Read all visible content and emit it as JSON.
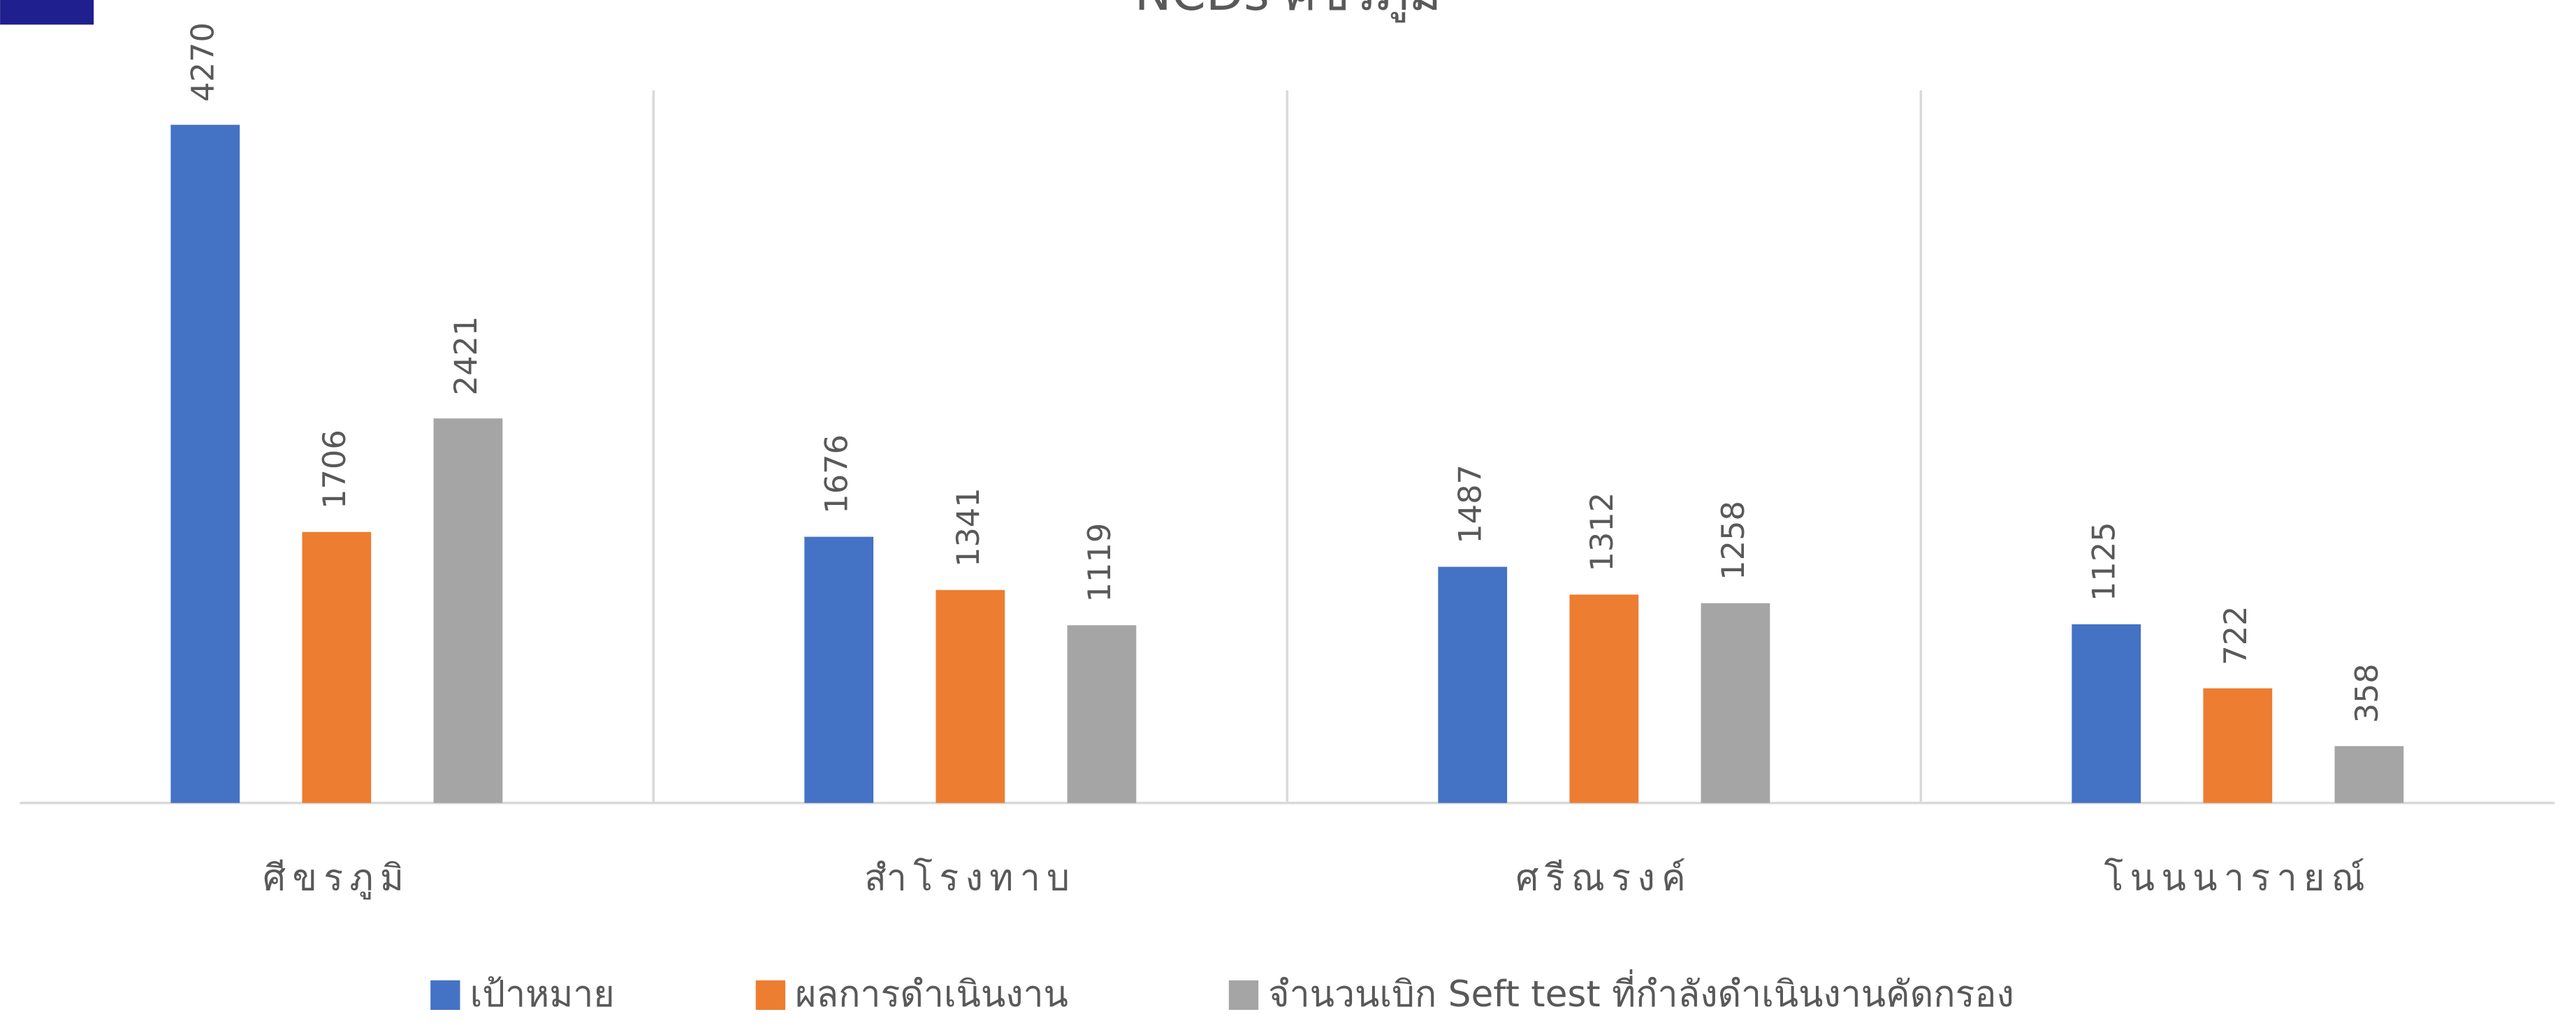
{
  "chart_data": {
    "type": "bar",
    "title": "NCDs ศีขรภูมิ",
    "categories": [
      "ศีขรภูมิ",
      "สำโรงทาบ",
      "ศรีณรงค์",
      "โนนนารายณ์"
    ],
    "series": [
      {
        "name": "เป้าหมาย",
        "color": "#4472c4",
        "values": [
          4270,
          1676,
          1487,
          1125
        ]
      },
      {
        "name": "ผลการดำเนินงาน",
        "color": "#ed7d31",
        "values": [
          1706,
          1341,
          1312,
          722
        ]
      },
      {
        "name": "จำนวนเบิก Seft test ที่กำลังดำเนินงานคัดกรอง",
        "color": "#a5a5a5",
        "values": [
          2421,
          1119,
          1258,
          358
        ]
      }
    ],
    "legend": "bottom"
  }
}
